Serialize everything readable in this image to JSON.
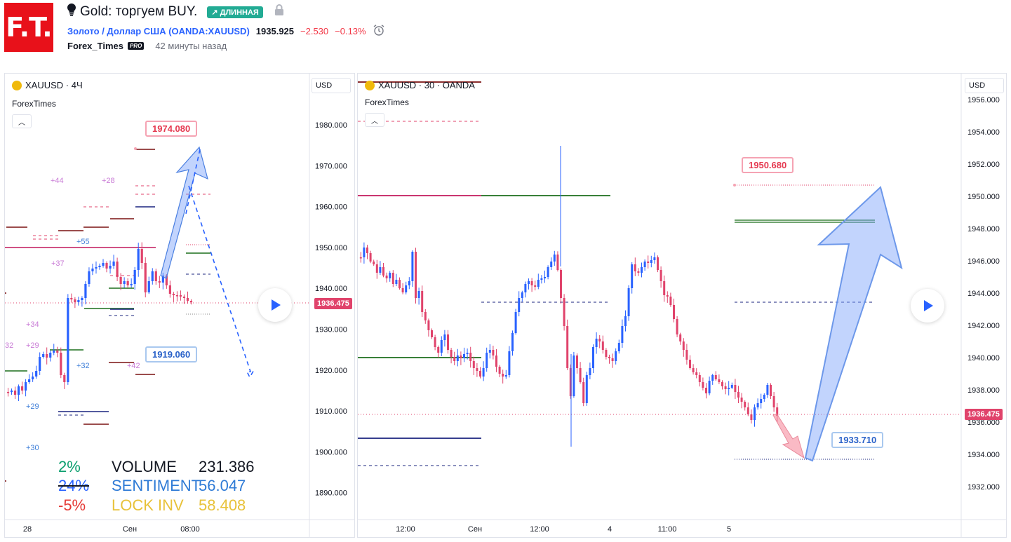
{
  "header": {
    "logo_text": "F.T.",
    "idea_title": "Gold: торгуем BUY.",
    "badge": "↗ ДЛИННАЯ",
    "symbol_link": "Золото / Доллар США (OANDA:XAUUSD)",
    "price": "1935.925",
    "change": "−2.530",
    "change_pct": "−0.13%",
    "author": "Forex_Times",
    "pro": "PRO",
    "time_ago": "42 минуты назад"
  },
  "left_chart": {
    "symbol": "XAUUSD · 4Ч",
    "indicator": "ForexTimes",
    "currency": "USD",
    "y_ticks": [
      "1980.000",
      "1970.000",
      "1960.000",
      "1950.000",
      "1940.000",
      "1930.000",
      "1920.000",
      "1910.000",
      "1900.000",
      "1890.000"
    ],
    "x_ticks": [
      "28",
      "Сен",
      "08:00"
    ],
    "last_price": "1936.475",
    "note_top": "1974.080",
    "note_bottom": "1919.060",
    "labels": [
      "+44",
      "+28",
      "+55",
      "+37",
      "+34",
      "+29",
      "32",
      "+32",
      "+42",
      "+29",
      "+30"
    ],
    "stats": [
      {
        "pct": "2%",
        "name": "VOLUME",
        "value": "231.386",
        "pct_color": "#0a9e6e",
        "name_color": "#131722"
      },
      {
        "pct": "24%",
        "name": "SENTIMENT",
        "value": "56.047",
        "pct_color": "#2962ff",
        "name_color": "#2f7bd6"
      },
      {
        "pct": "-5%",
        "name": "LOCK INV",
        "value": "58.408",
        "pct_color": "#e53935",
        "name_color": "#e8c23a"
      }
    ]
  },
  "right_chart": {
    "symbol": "XAUUSD · 30 · OANDA",
    "indicator": "ForexTimes",
    "currency": "USD",
    "y_ticks": [
      "1956.000",
      "1954.000",
      "1952.000",
      "1950.000",
      "1948.000",
      "1946.000",
      "1944.000",
      "1942.000",
      "1940.000",
      "1938.000",
      "1936.000",
      "1934.000",
      "1932.000"
    ],
    "x_ticks": [
      "12:00",
      "Сен",
      "12:00",
      "4",
      "11:00",
      "5"
    ],
    "last_price": "1936.475",
    "note_top": "1950.680",
    "note_bottom": "1933.710"
  },
  "colors": {
    "up": "#2962ff",
    "down": "#e0436b",
    "green": "#1b6e1b",
    "darkred": "#7a1010",
    "navy": "#1a237e",
    "magenta": "#c2185b"
  }
}
